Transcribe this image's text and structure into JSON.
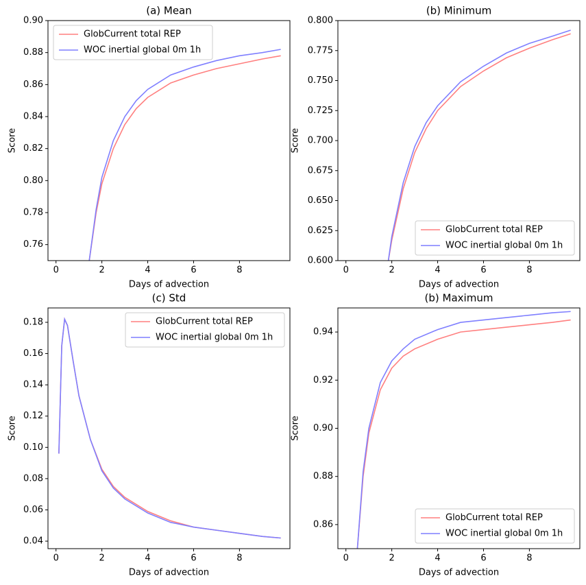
{
  "chart_data": [
    {
      "type": "line",
      "title": "(a) Mean",
      "xlabel": "Days of advection",
      "ylabel": "Score",
      "x": [
        1.45,
        1.75,
        2,
        2.5,
        3,
        3.5,
        4,
        5,
        6,
        7,
        8,
        9,
        9.8
      ],
      "series": [
        {
          "name": "GlobCurrent total REP",
          "color": "#ff7f7f",
          "values": [
            0.75,
            0.78,
            0.798,
            0.82,
            0.835,
            0.845,
            0.852,
            0.861,
            0.866,
            0.87,
            0.873,
            0.876,
            0.878
          ]
        },
        {
          "name": "WOC inertial global 0m 1h",
          "color": "#7f7fff",
          "values": [
            0.75,
            0.782,
            0.802,
            0.825,
            0.84,
            0.85,
            0.857,
            0.866,
            0.871,
            0.875,
            0.878,
            0.88,
            0.882
          ]
        }
      ],
      "xlim": [
        -0.35,
        10.2
      ],
      "xticks": [
        0,
        2,
        4,
        6,
        8
      ],
      "ylim": [
        0.75,
        0.9
      ],
      "yticks": [
        {
          "value": 0.76,
          "label": "0.76"
        },
        {
          "value": 0.78,
          "label": "0.78"
        },
        {
          "value": 0.8,
          "label": "0.80"
        },
        {
          "value": 0.82,
          "label": "0.82"
        },
        {
          "value": 0.84,
          "label": "0.84"
        },
        {
          "value": 0.86,
          "label": "0.86"
        },
        {
          "value": 0.88,
          "label": "0.88"
        },
        {
          "value": 0.9,
          "label": "0.90"
        }
      ],
      "legend": "upper-left",
      "grid": false
    },
    {
      "type": "line",
      "title": "(b) Minimum",
      "xlabel": "Days of advection",
      "ylabel": "Score",
      "x": [
        1.85,
        2,
        2.5,
        3,
        3.5,
        4,
        5,
        6,
        7,
        8,
        9,
        9.8
      ],
      "series": [
        {
          "name": "GlobCurrent total REP",
          "color": "#ff7f7f",
          "values": [
            0.6,
            0.617,
            0.66,
            0.69,
            0.71,
            0.725,
            0.745,
            0.758,
            0.769,
            0.777,
            0.784,
            0.789
          ]
        },
        {
          "name": "WOC inertial global 0m 1h",
          "color": "#7f7fff",
          "values": [
            0.6,
            0.62,
            0.665,
            0.695,
            0.715,
            0.729,
            0.749,
            0.762,
            0.773,
            0.781,
            0.787,
            0.792
          ]
        }
      ],
      "xlim": [
        -0.35,
        10.2
      ],
      "xticks": [
        0,
        2,
        4,
        6,
        8
      ],
      "ylim": [
        0.6,
        0.8
      ],
      "yticks": [
        {
          "value": 0.6,
          "label": "0.600"
        },
        {
          "value": 0.625,
          "label": "0.625"
        },
        {
          "value": 0.65,
          "label": "0.650"
        },
        {
          "value": 0.675,
          "label": "0.675"
        },
        {
          "value": 0.7,
          "label": "0.700"
        },
        {
          "value": 0.725,
          "label": "0.725"
        },
        {
          "value": 0.75,
          "label": "0.750"
        },
        {
          "value": 0.775,
          "label": "0.775"
        },
        {
          "value": 0.8,
          "label": "0.800"
        }
      ],
      "legend": "lower-right",
      "grid": false
    },
    {
      "type": "line",
      "title": "(c) Std",
      "xlabel": "Days of advection",
      "ylabel": "Score",
      "x": [
        0.125,
        0.25,
        0.375,
        0.5,
        0.75,
        1,
        1.5,
        2,
        2.5,
        3,
        4,
        5,
        6,
        7,
        8,
        9,
        9.8
      ],
      "series": [
        {
          "name": "GlobCurrent total REP",
          "color": "#ff7f7f",
          "values": [
            0.096,
            0.165,
            0.182,
            0.178,
            0.155,
            0.133,
            0.105,
            0.086,
            0.075,
            0.068,
            0.059,
            0.053,
            0.049,
            0.047,
            0.045,
            0.043,
            0.042
          ]
        },
        {
          "name": "WOC inertial global 0m 1h",
          "color": "#7f7fff",
          "values": [
            0.096,
            0.165,
            0.182,
            0.178,
            0.155,
            0.133,
            0.105,
            0.085,
            0.074,
            0.067,
            0.058,
            0.052,
            0.049,
            0.047,
            0.045,
            0.043,
            0.042
          ]
        }
      ],
      "xlim": [
        -0.35,
        10.2
      ],
      "xticks": [
        0,
        2,
        4,
        6,
        8
      ],
      "ylim": [
        0.0352,
        0.1892
      ],
      "yticks": [
        0.04,
        0.06,
        0.08,
        {
          "value": 0.1,
          "label": "0.10"
        },
        0.12,
        0.14,
        0.16,
        0.18
      ],
      "legend": "upper-right",
      "grid": false
    },
    {
      "type": "line",
      "title": "(b) Maximum",
      "xlabel": "Days of advection",
      "ylabel": "Score",
      "x": [
        0.5,
        0.75,
        1,
        1.5,
        2,
        2.5,
        3,
        4,
        5,
        6,
        7,
        8,
        9,
        9.8
      ],
      "series": [
        {
          "name": "GlobCurrent total REP",
          "color": "#ff7f7f",
          "values": [
            0.85,
            0.88,
            0.898,
            0.916,
            0.925,
            0.93,
            0.933,
            0.937,
            0.94,
            0.941,
            0.942,
            0.943,
            0.944,
            0.945
          ]
        },
        {
          "name": "WOC inertial global 0m 1h",
          "color": "#7f7fff",
          "values": [
            0.85,
            0.882,
            0.9,
            0.919,
            0.928,
            0.933,
            0.937,
            0.941,
            0.944,
            0.945,
            0.946,
            0.947,
            0.948,
            0.9485
          ]
        }
      ],
      "xlim": [
        -0.35,
        10.2
      ],
      "xticks": [
        0,
        2,
        4,
        6,
        8
      ],
      "ylim": [
        0.85,
        0.95
      ],
      "yticks": [
        0.86,
        0.88,
        {
          "value": 0.9,
          "label": "0.90"
        },
        0.92,
        0.94
      ],
      "legend": "lower-right",
      "grid": false
    }
  ]
}
